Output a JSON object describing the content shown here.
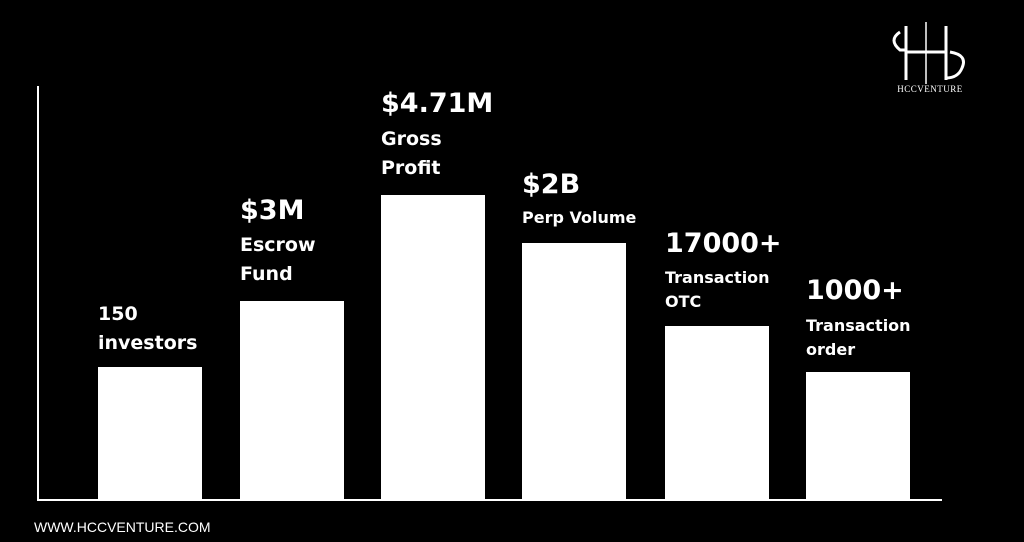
{
  "brand": "HCCVENTURE",
  "items": [
    {
      "value": "150",
      "lines": [
        "investors"
      ]
    },
    {
      "value": "$3M",
      "lines": [
        "Escrow",
        "Fund"
      ]
    },
    {
      "value": "$4.71M",
      "lines": [
        "Gross",
        "Profit"
      ]
    },
    {
      "value": "$2B",
      "lines": [
        "Perp Volume"
      ]
    },
    {
      "value": "17000+",
      "lines": [
        "Transaction",
        "OTC"
      ]
    },
    {
      "value": "1000+",
      "lines": [
        "Transaction",
        "order"
      ]
    }
  ],
  "footer": "WWW.HCCVENTURE.COM"
}
